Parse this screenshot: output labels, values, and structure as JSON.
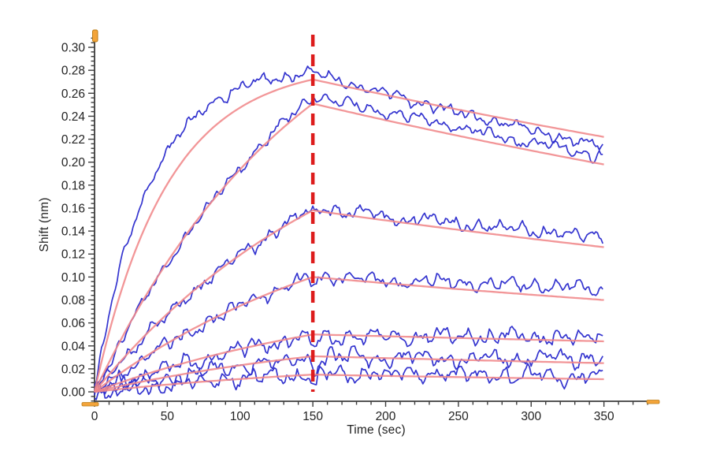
{
  "chart_data": {
    "type": "line",
    "title": "",
    "subtitle": "",
    "xlabel": "Time (sec)",
    "ylabel": "Shift (nm)",
    "xlim": [
      0,
      387
    ],
    "ylim": [
      -0.0082,
      0.311
    ],
    "x_data_range_sec": [
      0,
      350
    ],
    "y_label_range_nm": [
      0.0,
      0.3
    ],
    "x_major_ticks": [
      0,
      50,
      100,
      150,
      200,
      250,
      300,
      350
    ],
    "x_tick_labels": [
      "0",
      "50",
      "100",
      "150",
      "200",
      "250",
      "300",
      "350"
    ],
    "x_minor_step_sec": 10,
    "y_major_step_nm": 0.02,
    "y_minor_step_nm": 0.004,
    "y_tick_labels": [
      "0.00",
      "0.02",
      "0.04",
      "0.06",
      "0.08",
      "0.10",
      "0.12",
      "0.14",
      "0.16",
      "0.18",
      "0.20",
      "0.22",
      "0.24",
      "0.26",
      "0.28",
      "0.30"
    ],
    "grid": false,
    "legend": "none",
    "association_window_sec": [
      0,
      150
    ],
    "dissociation_window_sec": [
      150,
      350
    ],
    "transition_marker_sec": 150,
    "series": [
      {
        "id": "trace-1",
        "data": {
          "peak_nm_at_150s": 0.278,
          "end_nm_at_350s": 0.213,
          "kobs_per_s": 0.027,
          "noise_nm": 0.0032,
          "step_dip_nm": 0
        },
        "fit": {
          "peak_nm_at_150s": 0.272,
          "end_nm_at_350s": 0.222,
          "kobs_per_s": 0.02
        }
      },
      {
        "id": "trace-2",
        "data": {
          "peak_nm_at_150s": 0.257,
          "end_nm_at_350s": 0.205,
          "kobs_per_s": 0.0058,
          "noise_nm": 0.0032,
          "step_dip_nm": 0
        },
        "fit": {
          "peak_nm_at_150s": 0.251,
          "end_nm_at_350s": 0.198,
          "kobs_per_s": 0.0068
        }
      },
      {
        "id": "trace-3",
        "data": {
          "peak_nm_at_150s": 0.16,
          "end_nm_at_350s": 0.134,
          "kobs_per_s": 0.0048,
          "noise_nm": 0.0036,
          "step_dip_nm": 0.005
        },
        "fit": {
          "peak_nm_at_150s": 0.158,
          "end_nm_at_350s": 0.126,
          "kobs_per_s": 0.0056
        }
      },
      {
        "id": "trace-4",
        "data": {
          "peak_nm_at_150s": 0.101,
          "end_nm_at_350s": 0.089,
          "kobs_per_s": 0.0045,
          "noise_nm": 0.0038,
          "step_dip_nm": 0.006
        },
        "fit": {
          "peak_nm_at_150s": 0.1,
          "end_nm_at_350s": 0.08,
          "kobs_per_s": 0.0052
        }
      },
      {
        "id": "trace-5",
        "data": {
          "peak_nm_at_150s": 0.049,
          "end_nm_at_350s": 0.048,
          "kobs_per_s": 0.0048,
          "noise_nm": 0.0045,
          "step_dip_nm": 0.012
        },
        "fit": {
          "peak_nm_at_150s": 0.05,
          "end_nm_at_350s": 0.044,
          "kobs_per_s": 0.005
        }
      },
      {
        "id": "trace-6",
        "data": {
          "peak_nm_at_150s": 0.03,
          "end_nm_at_350s": 0.029,
          "kobs_per_s": 0.0045,
          "noise_nm": 0.0045,
          "step_dip_nm": 0.012
        },
        "fit": {
          "peak_nm_at_150s": 0.031,
          "end_nm_at_350s": 0.025,
          "kobs_per_s": 0.005
        }
      },
      {
        "id": "trace-7",
        "data": {
          "peak_nm_at_150s": 0.016,
          "end_nm_at_350s": 0.013,
          "kobs_per_s": 0.004,
          "noise_nm": 0.0045,
          "step_dip_nm": 0.013
        },
        "fit": {
          "peak_nm_at_150s": 0.015,
          "end_nm_at_350s": 0.011,
          "kobs_per_s": 0.005
        }
      }
    ],
    "colors": {
      "data_trace": "#2929cc",
      "fit_curve": "#f0888a",
      "transition_line": "#dd1c1c",
      "axis": "#3d3d3d",
      "tick_text": "#222222",
      "axis_marker_orange": "#f3a43a",
      "axis_marker_orange_border": "#bb7d18",
      "background": "#ffffff"
    },
    "axis_end_markers": [
      "y-axis-top",
      "x-axis-origin",
      "x-axis-right-end"
    ]
  }
}
